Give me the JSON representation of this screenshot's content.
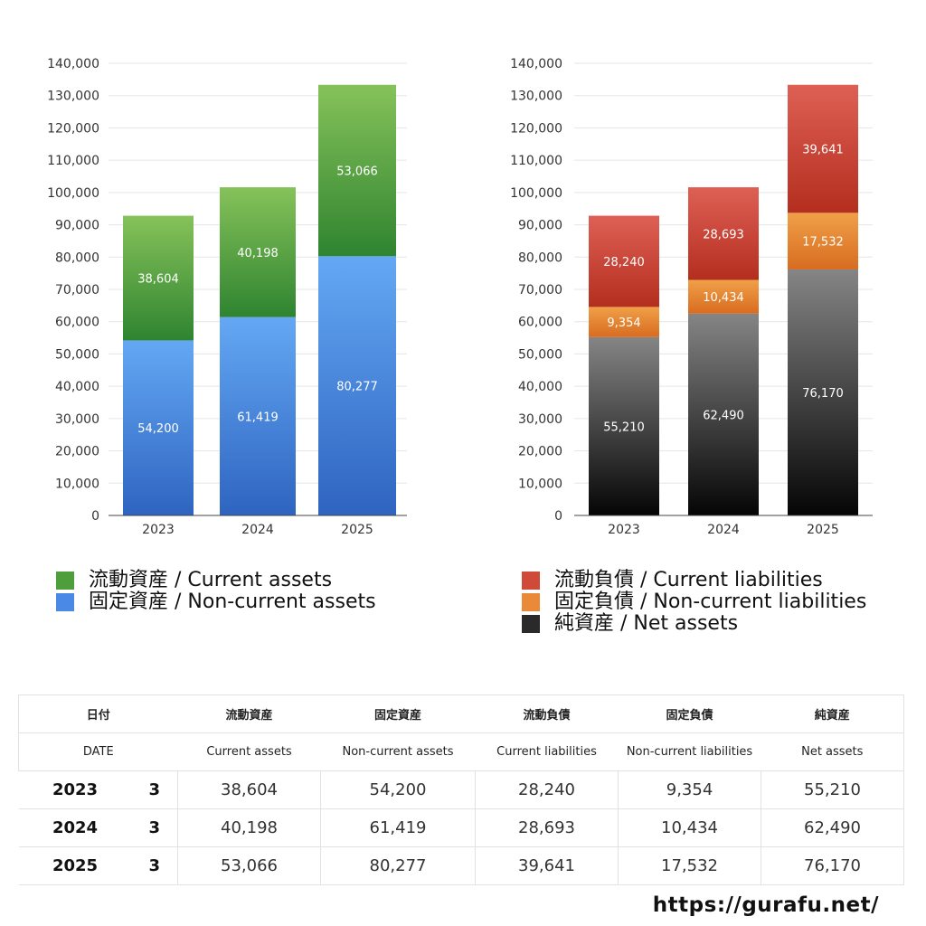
{
  "chart_data": [
    {
      "type": "bar",
      "stacked": true,
      "categories": [
        "2023",
        "2024",
        "2025"
      ],
      "ylim": [
        0,
        140000
      ],
      "yticks": [
        0,
        10000,
        20000,
        30000,
        40000,
        50000,
        60000,
        70000,
        80000,
        90000,
        100000,
        110000,
        120000,
        130000,
        140000
      ],
      "grid": true,
      "legend_placement": "bottom",
      "series": [
        {
          "name": "固定資産 / Non-current assets",
          "values": [
            54200,
            61419,
            80277
          ],
          "color_top": "#64a8f4",
          "color_bottom": "#2e64c0"
        },
        {
          "name": "流動資産 / Current assets",
          "values": [
            38604,
            40198,
            53066
          ],
          "color_top": "#86c25a",
          "color_bottom": "#2f8430"
        }
      ],
      "legend_order": [
        1,
        0
      ]
    },
    {
      "type": "bar",
      "stacked": true,
      "categories": [
        "2023",
        "2024",
        "2025"
      ],
      "ylim": [
        0,
        140000
      ],
      "yticks": [
        0,
        10000,
        20000,
        30000,
        40000,
        50000,
        60000,
        70000,
        80000,
        90000,
        100000,
        110000,
        120000,
        130000,
        140000
      ],
      "grid": true,
      "legend_placement": "bottom",
      "series": [
        {
          "name": "純資産 / Net assets",
          "values": [
            55210,
            62490,
            76170
          ],
          "color_top": "#858585",
          "color_bottom": "#050505"
        },
        {
          "name": "固定負債 / Non-current liabilities",
          "values": [
            9354,
            10434,
            17532
          ],
          "color_top": "#f0a048",
          "color_bottom": "#d86c20"
        },
        {
          "name": "流動負債 / Current liabilities",
          "values": [
            28240,
            28693,
            39641
          ],
          "color_top": "#de6055",
          "color_bottom": "#b42e1e"
        }
      ],
      "legend_order": [
        2,
        1,
        0
      ]
    }
  ],
  "legend_left": [
    {
      "label": "流動資産 / Current assets",
      "color": "#4e9e3c"
    },
    {
      "label": "固定資産 / Non-current assets",
      "color": "#4a8ae6"
    }
  ],
  "legend_right": [
    {
      "label": "流動負債 / Current liabilities",
      "color": "#d04a3a"
    },
    {
      "label": "固定負債 / Non-current liabilities",
      "color": "#e88a38"
    },
    {
      "label": "純資産 / Net assets",
      "color": "#2a2a2a"
    }
  ],
  "table": {
    "header_jp": [
      "日付",
      "",
      "流動資産",
      "固定資産",
      "流動負債",
      "固定負債",
      "純資産"
    ],
    "header_en": [
      "DATE",
      "",
      "Current assets",
      "Non-current assets",
      "Current liabilities",
      "Non-current liabilities",
      "Net assets"
    ],
    "rows": [
      {
        "year": "2023",
        "month": "3",
        "values": [
          "38,604",
          "54,200",
          "28,240",
          "9,354",
          "55,210"
        ]
      },
      {
        "year": "2024",
        "month": "3",
        "values": [
          "40,198",
          "61,419",
          "28,693",
          "10,434",
          "62,490"
        ]
      },
      {
        "year": "2025",
        "month": "3",
        "values": [
          "53,066",
          "80,277",
          "39,641",
          "17,532",
          "76,170"
        ]
      }
    ]
  },
  "site_url": "https://gurafu.net/"
}
